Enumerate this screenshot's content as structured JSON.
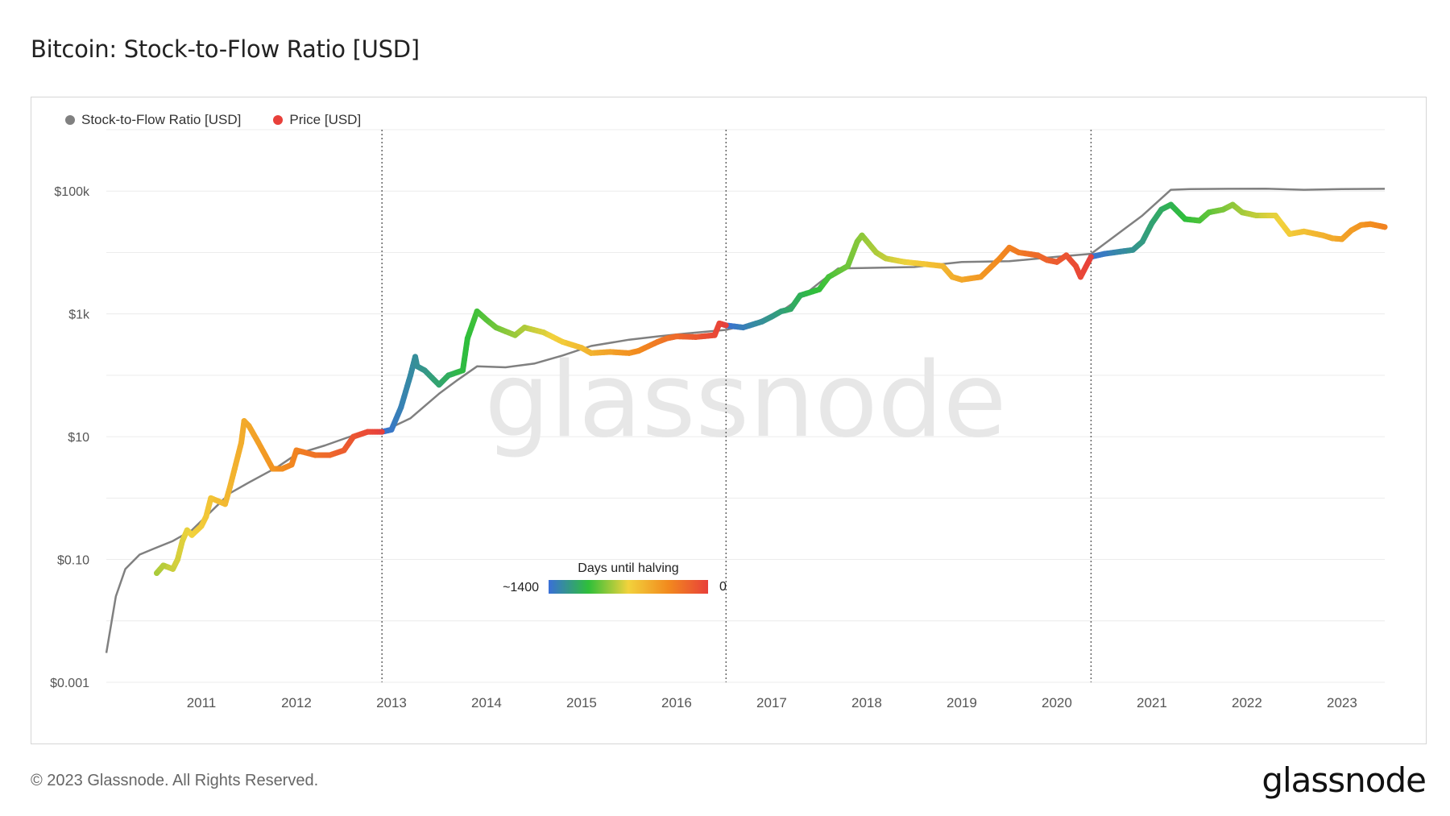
{
  "page": {
    "title": "Bitcoin: Stock-to-Flow Ratio [USD]",
    "footer": "© 2023 Glassnode. All Rights Reserved.",
    "logo": "glassnode",
    "watermark": "glassnode"
  },
  "chart_data": {
    "type": "line",
    "title": "Bitcoin: Stock-to-Flow Ratio [USD]",
    "xlabel": "",
    "ylabel": "",
    "y_scale": "log",
    "ylim": [
      0.001,
      1000000
    ],
    "xlim": [
      2010.0,
      2023.45
    ],
    "y_ticks": [
      {
        "value": 100000,
        "label": "$100k"
      },
      {
        "value": 1000,
        "label": "$1k"
      },
      {
        "value": 10,
        "label": "$10"
      },
      {
        "value": 0.1,
        "label": "$0.10"
      },
      {
        "value": 0.001,
        "label": "$0.001"
      }
    ],
    "x_ticks": [
      "2011",
      "2012",
      "2013",
      "2014",
      "2015",
      "2016",
      "2017",
      "2018",
      "2019",
      "2020",
      "2021",
      "2022",
      "2023"
    ],
    "grid": true,
    "legend_position": "top-left",
    "legend": [
      {
        "name": "Stock-to-Flow Ratio [USD]",
        "color": "#808080"
      },
      {
        "name": "Price [USD]",
        "color": "#e8403a"
      }
    ],
    "halvings": [
      2012.9,
      2016.52,
      2020.36
    ],
    "colorbar": {
      "title": "Days until halving",
      "min_label": "~1400",
      "max_label": "0",
      "colors": [
        "#3a6fd8",
        "#2fbf3a",
        "#f2d23c",
        "#f28a1e",
        "#e8403a"
      ]
    },
    "series": [
      {
        "name": "Stock-to-Flow Ratio [USD]",
        "color": "#808080",
        "x": [
          2010.0,
          2010.1,
          2010.2,
          2010.35,
          2010.5,
          2010.7,
          2010.9,
          2011.1,
          2011.3,
          2011.5,
          2011.8,
          2012.0,
          2012.3,
          2012.6,
          2012.9,
          2013.2,
          2013.5,
          2013.7,
          2013.9,
          2014.2,
          2014.5,
          2014.8,
          2015.1,
          2015.5,
          2015.8,
          2016.1,
          2016.52,
          2016.8,
          2017.1,
          2017.3,
          2017.5,
          2017.7,
          2018.0,
          2018.5,
          2019.0,
          2019.5,
          2020.0,
          2020.36,
          2020.6,
          2020.9,
          2021.2,
          2021.4,
          2021.8,
          2022.2,
          2022.6,
          2023.0,
          2023.45
        ],
        "y": [
          0.003,
          0.025,
          0.07,
          0.12,
          0.15,
          0.2,
          0.3,
          0.6,
          1.2,
          1.8,
          3.2,
          5.2,
          7.2,
          10.5,
          12,
          20,
          50,
          85,
          140,
          135,
          155,
          210,
          300,
          380,
          430,
          480,
          550,
          700,
          1100,
          1800,
          3200,
          5500,
          5600,
          5800,
          7000,
          7200,
          8500,
          9500,
          18000,
          40000,
          105000,
          108000,
          109000,
          109500,
          105000,
          108000,
          109000
        ]
      },
      {
        "name": "Price [USD]",
        "color": "#e8403a",
        "x": [
          2010.53,
          2010.6,
          2010.7,
          2010.75,
          2010.8,
          2010.85,
          2010.9,
          2011.0,
          2011.05,
          2011.1,
          2011.25,
          2011.3,
          2011.35,
          2011.42,
          2011.45,
          2011.5,
          2011.6,
          2011.75,
          2011.85,
          2011.95,
          2012.0,
          2012.2,
          2012.35,
          2012.5,
          2012.6,
          2012.75,
          2012.9,
          2013.0,
          2013.1,
          2013.2,
          2013.25,
          2013.27,
          2013.35,
          2013.5,
          2013.6,
          2013.75,
          2013.8,
          2013.9,
          2014.0,
          2014.1,
          2014.3,
          2014.4,
          2014.6,
          2014.8,
          2015.0,
          2015.1,
          2015.3,
          2015.5,
          2015.6,
          2015.8,
          2015.9,
          2016.0,
          2016.2,
          2016.4,
          2016.45,
          2016.52,
          2016.7,
          2016.9,
          2017.0,
          2017.1,
          2017.2,
          2017.3,
          2017.5,
          2017.6,
          2017.8,
          2017.9,
          2017.95,
          2018.1,
          2018.2,
          2018.4,
          2018.6,
          2018.8,
          2018.9,
          2019.0,
          2019.2,
          2019.4,
          2019.5,
          2019.6,
          2019.8,
          2019.9,
          2020.0,
          2020.1,
          2020.2,
          2020.25,
          2020.36,
          2020.5,
          2020.7,
          2020.8,
          2020.9,
          2021.0,
          2021.1,
          2021.2,
          2021.35,
          2021.5,
          2021.6,
          2021.75,
          2021.85,
          2021.95,
          2022.1,
          2022.3,
          2022.45,
          2022.6,
          2022.8,
          2022.9,
          2023.0,
          2023.1,
          2023.2,
          2023.3,
          2023.45
        ],
        "y": [
          0.06,
          0.08,
          0.07,
          0.1,
          0.2,
          0.3,
          0.25,
          0.35,
          0.5,
          1,
          0.8,
          1.5,
          3,
          8,
          18,
          15,
          8,
          3,
          3,
          3.5,
          6,
          5,
          5,
          6,
          10,
          12,
          12,
          13,
          30,
          100,
          200,
          140,
          120,
          70,
          100,
          120,
          400,
          1100,
          800,
          600,
          450,
          600,
          500,
          350,
          280,
          230,
          240,
          230,
          250,
          350,
          400,
          430,
          420,
          450,
          700,
          650,
          600,
          750,
          900,
          1100,
          1200,
          2000,
          2500,
          4000,
          6000,
          15000,
          19000,
          10000,
          8000,
          7000,
          6500,
          6000,
          4000,
          3600,
          4000,
          8000,
          12000,
          10000,
          9000,
          7500,
          7000,
          9000,
          6000,
          4000,
          8500,
          9500,
          10500,
          11000,
          15000,
          30000,
          50000,
          60000,
          35000,
          33000,
          45000,
          50000,
          60000,
          45000,
          40000,
          40000,
          20000,
          22000,
          19000,
          17000,
          16500,
          23000,
          28000,
          29000,
          26000
        ]
      }
    ]
  }
}
